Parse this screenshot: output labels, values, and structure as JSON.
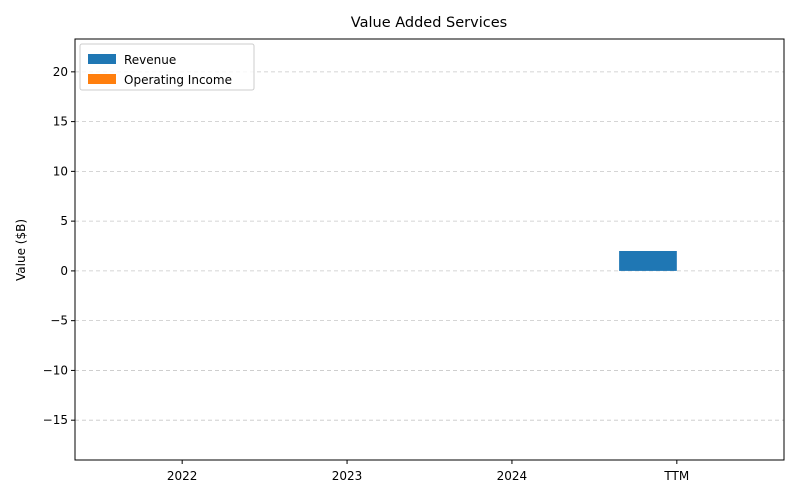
{
  "chart_data": {
    "type": "bar",
    "title": "Value Added Services",
    "xlabel": "",
    "ylabel": "Value ($B)",
    "categories": [
      "2022",
      "2023",
      "2024",
      "TTM"
    ],
    "series": [
      {
        "name": "Revenue",
        "color": "#1f77b4",
        "values": [
          null,
          null,
          null,
          2.0
        ]
      },
      {
        "name": "Operating Income",
        "color": "#ff7f0e",
        "values": [
          null,
          null,
          null,
          null
        ]
      }
    ],
    "ylim": [
      -19,
      23.3
    ],
    "yticks": [
      -15,
      -10,
      -5,
      0,
      5,
      10,
      15,
      20
    ],
    "ytick_labels": [
      "−15",
      "−10",
      "−5",
      "0",
      "5",
      "10",
      "15",
      "20"
    ],
    "grid": "y-dashed",
    "legend_position": "top-left"
  }
}
